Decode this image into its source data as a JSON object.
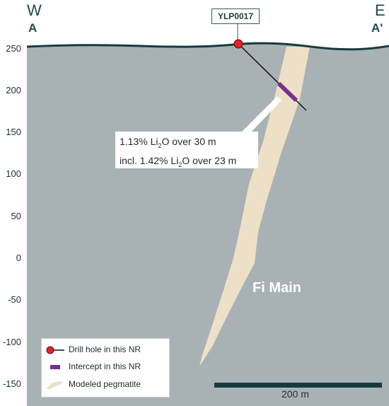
{
  "directions": {
    "west_letter": "W",
    "west_point": "A",
    "east_letter": "E",
    "east_point": "A'"
  },
  "y_axis": {
    "ticks": [
      "250",
      "200",
      "150",
      "100",
      "50",
      "0",
      "-50",
      "-100",
      "-150"
    ]
  },
  "drill_hole": {
    "name": "YLP0017"
  },
  "callout": {
    "line1_pre": "1.13% Li",
    "line1_sub": "2",
    "line1_post": "O over 30 m",
    "line2_pre": "incl. 1.42% Li",
    "line2_sub": "2",
    "line2_post": "O over 23 m"
  },
  "body_name": "Fi Main",
  "legend": {
    "drill_hole": "Drill hole in this NR",
    "intercept": "Intercept in this NR",
    "pegmatite": "Modeled pegmatite"
  },
  "scale_bar": {
    "label": "200 m"
  },
  "colors": {
    "background_section": "#a8b2b5",
    "pegmatite": "#eee0c7",
    "intercept": "#7b2f8f",
    "drill_collar": "#e8202a",
    "topography": "#173b3d",
    "scale_bar": "#173b3d"
  }
}
